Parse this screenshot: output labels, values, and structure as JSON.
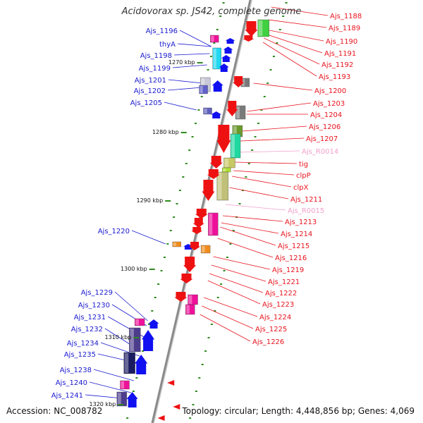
{
  "title": "Acidovorax sp. JS42, complete genome",
  "footer": {
    "accession": "Accession: NC_008782",
    "topology": "Topology: circular; Length: 4,448,856 bp; Genes: 4,069"
  },
  "colors": {
    "backbone": "#8a8a8a",
    "tick": "#2e8b1e",
    "forward_label": "#1a1ad0",
    "reverse_label": "#e8141e",
    "rna_label": "#f0a0cc"
  },
  "scale_labels": [
    "1270 kbp",
    "1280 kbp",
    "1290 kbp",
    "1300 kbp",
    "1310 kbp",
    "1320 kbp"
  ],
  "forward_labels": [
    "Ajs_1196",
    "thyA",
    "Ajs_1198",
    "Ajs_1199",
    "Ajs_1201",
    "Ajs_1202",
    "Ajs_1205",
    "Ajs_1220",
    "Ajs_1229",
    "Ajs_1230",
    "Ajs_1231",
    "Ajs_1232",
    "Ajs_1234",
    "Ajs_1235",
    "Ajs_1238",
    "Ajs_1240",
    "Ajs_1241"
  ],
  "reverse_labels": [
    "Ajs_1188",
    "Ajs_1189",
    "Ajs_1190",
    "Ajs_1191",
    "Ajs_1192",
    "Ajs_1193",
    "Ajs_1200",
    "Ajs_1203",
    "Ajs_1204",
    "Ajs_1206",
    "Ajs_1207",
    "Ajs_R0014",
    "tig",
    "clpP",
    "clpX",
    "Ajs_1211",
    "Ajs_R0015",
    "Ajs_1213",
    "Ajs_1214",
    "Ajs_1215",
    "Ajs_1216",
    "Ajs_1219",
    "Ajs_1221",
    "Ajs_1222",
    "Ajs_1223",
    "Ajs_1224",
    "Ajs_1225",
    "Ajs_1226"
  ]
}
